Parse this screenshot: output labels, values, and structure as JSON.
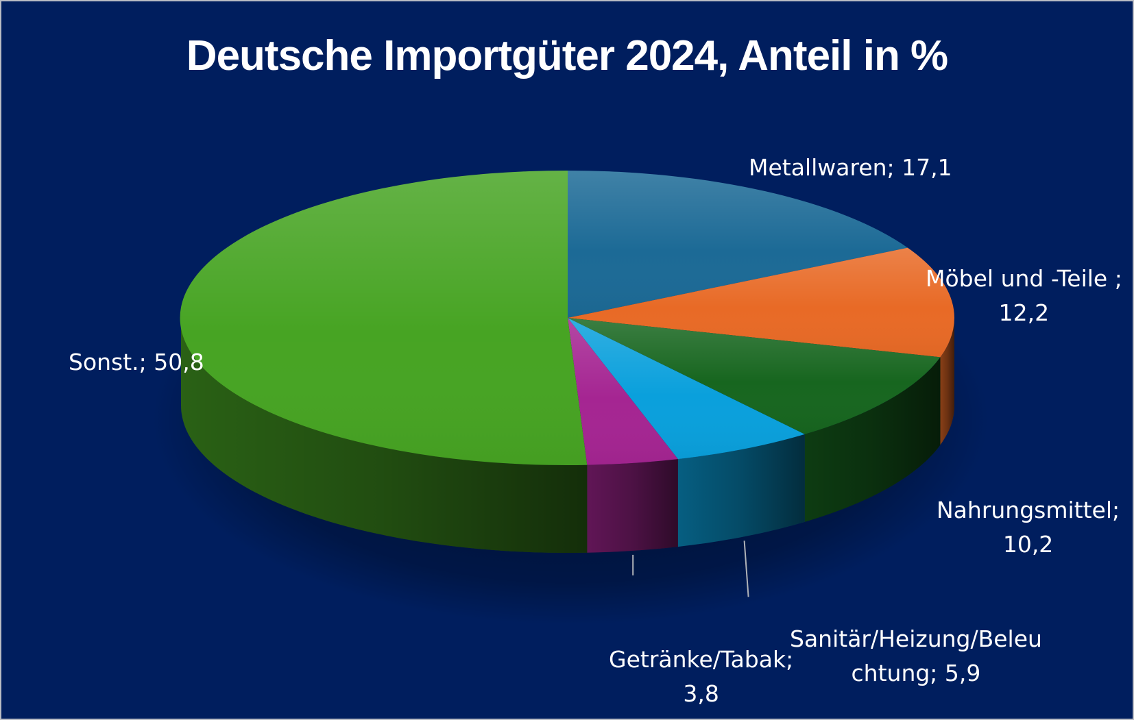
{
  "chart_data": {
    "type": "pie",
    "title": "Deutsche Importgüter 2024, Anteil in %",
    "series": [
      {
        "name": "Metallwaren",
        "value": 17.1,
        "label": "Metallwaren; 17,1",
        "color": "#1c6a96"
      },
      {
        "name": "Möbel und -Teile",
        "value": 12.2,
        "label": "Möbel und -Teile ; 12,2",
        "color": "#e86a26"
      },
      {
        "name": "Nahrungsmittel",
        "value": 10.2,
        "label": "Nahrungsmittel; 10,2",
        "color": "#17661f"
      },
      {
        "name": "Sanitär/Heizung/Beleuchtung",
        "value": 5.9,
        "label": "Sanitär/Heizung/Beleuchtung; 5,9",
        "color": "#0aa0dc"
      },
      {
        "name": "Getränke/Tabak",
        "value": 3.8,
        "label": "Getränke/Tabak; 3,8",
        "color": "#a52592"
      },
      {
        "name": "Sonst.",
        "value": 50.8,
        "label": "Sonst.; 50,8",
        "color": "#47a423"
      }
    ],
    "labels_display": {
      "metallwaren": [
        "Metallwaren; 17,1"
      ],
      "moebel": [
        "Möbel und -Teile ;",
        "12,2"
      ],
      "nahrungsmittel": [
        "Nahrungsmittel;",
        "10,2"
      ],
      "sanitaer": [
        "Sanitär/Heizung/Beleu",
        "chtung; 5,9"
      ],
      "getraenke": [
        "Getränke/Tabak;",
        "3,8"
      ],
      "sonst": [
        "Sonst.; 50,8"
      ]
    },
    "legend": "none",
    "background_color": "#001e5e",
    "pie_style": "3d"
  }
}
